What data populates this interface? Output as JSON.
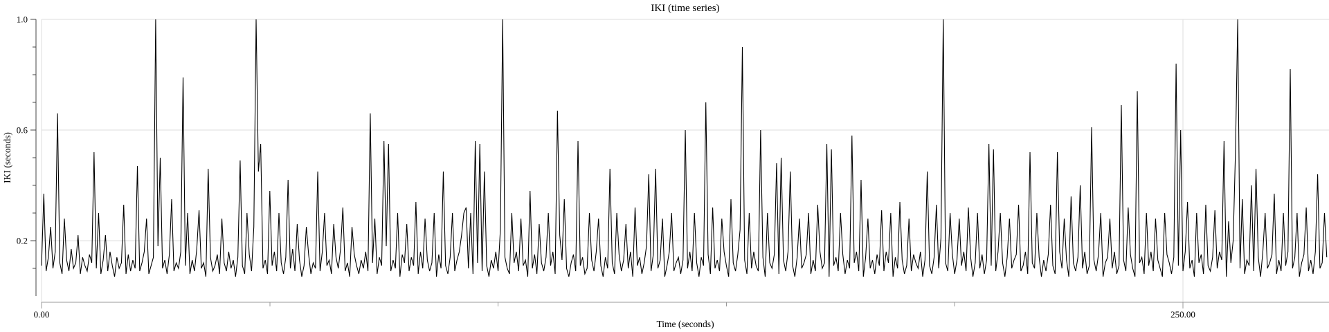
{
  "title": "IKI (time series)",
  "colors": {
    "line": "#000000",
    "grid": "#dddddd",
    "y_axis": "#444444",
    "x_axis": "#999999",
    "text": "#000000",
    "background": "#ffffff"
  },
  "chart_data": {
    "type": "line",
    "title": "IKI (time series)",
    "xlabel": "Time (seconds)",
    "ylabel": "IKI (seconds)",
    "legend": "none",
    "grid": "horizontal-majors-and-x-major-verticals",
    "xlim": [
      0,
      282
    ],
    "ylim": [
      0,
      1.0
    ],
    "x_ticks_major": [
      {
        "value": 0,
        "label": "0.00"
      },
      {
        "value": 250,
        "label": "250.00"
      }
    ],
    "x_ticks_minor": [
      50,
      100,
      150,
      200
    ],
    "y_ticks_major": [
      {
        "value": 1.0,
        "label": "1.0"
      },
      {
        "value": 0.6,
        "label": "0.6"
      },
      {
        "value": 0.2,
        "label": "0.2"
      }
    ],
    "y_ticks_minor": [
      0.1,
      0.3,
      0.4,
      0.5,
      0.7,
      0.8,
      0.9
    ],
    "x_start": 0,
    "x_step": 0.5,
    "values": [
      0.11,
      0.37,
      0.09,
      0.14,
      0.25,
      0.1,
      0.16,
      0.66,
      0.12,
      0.08,
      0.28,
      0.13,
      0.09,
      0.17,
      0.1,
      0.12,
      0.22,
      0.08,
      0.14,
      0.11,
      0.09,
      0.15,
      0.12,
      0.52,
      0.1,
      0.3,
      0.08,
      0.13,
      0.22,
      0.09,
      0.16,
      0.11,
      0.07,
      0.14,
      0.1,
      0.12,
      0.33,
      0.08,
      0.15,
      0.09,
      0.13,
      0.1,
      0.47,
      0.09,
      0.12,
      0.16,
      0.28,
      0.08,
      0.11,
      0.14,
      1.0,
      0.18,
      0.5,
      0.1,
      0.13,
      0.08,
      0.15,
      0.35,
      0.09,
      0.12,
      0.1,
      0.16,
      0.79,
      0.11,
      0.3,
      0.08,
      0.13,
      0.09,
      0.17,
      0.31,
      0.1,
      0.12,
      0.07,
      0.46,
      0.14,
      0.09,
      0.11,
      0.15,
      0.08,
      0.28,
      0.12,
      0.09,
      0.16,
      0.1,
      0.13,
      0.07,
      0.14,
      0.49,
      0.11,
      0.08,
      0.3,
      0.15,
      0.09,
      0.25,
      1.0,
      0.45,
      0.55,
      0.1,
      0.13,
      0.08,
      0.38,
      0.11,
      0.16,
      0.09,
      0.3,
      0.12,
      0.08,
      0.14,
      0.42,
      0.1,
      0.17,
      0.09,
      0.26,
      0.13,
      0.07,
      0.11,
      0.25,
      0.15,
      0.08,
      0.12,
      0.1,
      0.45,
      0.09,
      0.16,
      0.3,
      0.11,
      0.13,
      0.08,
      0.26,
      0.14,
      0.1,
      0.17,
      0.32,
      0.09,
      0.12,
      0.07,
      0.25,
      0.15,
      0.11,
      0.08,
      0.13,
      0.1,
      0.16,
      0.09,
      0.66,
      0.12,
      0.28,
      0.08,
      0.14,
      0.11,
      0.56,
      0.18,
      0.55,
      0.09,
      0.13,
      0.1,
      0.3,
      0.07,
      0.15,
      0.12,
      0.26,
      0.09,
      0.14,
      0.11,
      0.34,
      0.08,
      0.16,
      0.1,
      0.28,
      0.13,
      0.09,
      0.12,
      0.3,
      0.07,
      0.15,
      0.1,
      0.45,
      0.11,
      0.08,
      0.14,
      0.3,
      0.09,
      0.13,
      0.16,
      0.22,
      0.3,
      0.32,
      0.1,
      0.3,
      0.08,
      0.56,
      0.12,
      0.55,
      0.09,
      0.45,
      0.11,
      0.07,
      0.13,
      0.1,
      0.16,
      0.09,
      0.24,
      1.0,
      0.14,
      0.1,
      0.08,
      0.3,
      0.12,
      0.16,
      0.09,
      0.28,
      0.11,
      0.13,
      0.07,
      0.38,
      0.1,
      0.15,
      0.08,
      0.26,
      0.12,
      0.09,
      0.14,
      0.3,
      0.11,
      0.16,
      0.08,
      0.67,
      0.22,
      0.13,
      0.35,
      0.1,
      0.07,
      0.12,
      0.15,
      0.09,
      0.56,
      0.11,
      0.14,
      0.08,
      0.1,
      0.3,
      0.13,
      0.09,
      0.16,
      0.28,
      0.11,
      0.07,
      0.14,
      0.1,
      0.46,
      0.12,
      0.08,
      0.3,
      0.15,
      0.09,
      0.13,
      0.26,
      0.1,
      0.16,
      0.07,
      0.32,
      0.11,
      0.14,
      0.08,
      0.12,
      0.18,
      0.44,
      0.09,
      0.15,
      0.46,
      0.1,
      0.13,
      0.28,
      0.07,
      0.11,
      0.16,
      0.3,
      0.09,
      0.12,
      0.14,
      0.08,
      0.13,
      0.6,
      0.1,
      0.16,
      0.09,
      0.3,
      0.12,
      0.07,
      0.14,
      0.11,
      0.7,
      0.15,
      0.08,
      0.32,
      0.1,
      0.13,
      0.09,
      0.28,
      0.16,
      0.11,
      0.07,
      0.35,
      0.12,
      0.09,
      0.15,
      0.24,
      0.9,
      0.13,
      0.08,
      0.3,
      0.1,
      0.16,
      0.11,
      0.09,
      0.6,
      0.14,
      0.07,
      0.3,
      0.12,
      0.1,
      0.15,
      0.48,
      0.08,
      0.5,
      0.13,
      0.09,
      0.16,
      0.45,
      0.11,
      0.07,
      0.14,
      0.28,
      0.1,
      0.12,
      0.15,
      0.3,
      0.08,
      0.13,
      0.09,
      0.33,
      0.16,
      0.1,
      0.12,
      0.55,
      0.07,
      0.53,
      0.11,
      0.14,
      0.09,
      0.3,
      0.15,
      0.08,
      0.13,
      0.1,
      0.58,
      0.12,
      0.16,
      0.09,
      0.42,
      0.07,
      0.14,
      0.28,
      0.1,
      0.13,
      0.08,
      0.15,
      0.11,
      0.31,
      0.09,
      0.16,
      0.12,
      0.3,
      0.07,
      0.14,
      0.1,
      0.34,
      0.13,
      0.08,
      0.11,
      0.28,
      0.09,
      0.15,
      0.12,
      0.1,
      0.16,
      0.07,
      0.13,
      0.45,
      0.11,
      0.08,
      0.14,
      0.33,
      0.1,
      0.21,
      1.0,
      0.12,
      0.09,
      0.3,
      0.15,
      0.08,
      0.13,
      0.28,
      0.11,
      0.16,
      0.09,
      0.32,
      0.14,
      0.07,
      0.12,
      0.3,
      0.1,
      0.15,
      0.08,
      0.13,
      0.55,
      0.11,
      0.53,
      0.09,
      0.16,
      0.3,
      0.12,
      0.07,
      0.14,
      0.28,
      0.1,
      0.13,
      0.15,
      0.33,
      0.09,
      0.11,
      0.16,
      0.08,
      0.52,
      0.12,
      0.1,
      0.3,
      0.14,
      0.07,
      0.13,
      0.09,
      0.15,
      0.33,
      0.11,
      0.08,
      0.52,
      0.16,
      0.1,
      0.28,
      0.13,
      0.07,
      0.36,
      0.12,
      0.09,
      0.14,
      0.4,
      0.1,
      0.16,
      0.08,
      0.11,
      0.61,
      0.13,
      0.09,
      0.15,
      0.3,
      0.07,
      0.12,
      0.14,
      0.28,
      0.1,
      0.16,
      0.08,
      0.11,
      0.69,
      0.13,
      0.09,
      0.32,
      0.15,
      0.1,
      0.07,
      0.74,
      0.12,
      0.14,
      0.08,
      0.3,
      0.11,
      0.16,
      0.09,
      0.28,
      0.13,
      0.1,
      0.07,
      0.3,
      0.15,
      0.12,
      0.08,
      0.14,
      0.84,
      0.11,
      0.6,
      0.09,
      0.16,
      0.34,
      0.1,
      0.13,
      0.07,
      0.3,
      0.12,
      0.15,
      0.08,
      0.33,
      0.11,
      0.09,
      0.14,
      0.31,
      0.1,
      0.16,
      0.13,
      0.56,
      0.07,
      0.27,
      0.12,
      0.2,
      0.52,
      1.0,
      0.1,
      0.35,
      0.08,
      0.13,
      0.11,
      0.4,
      0.09,
      0.46,
      0.14,
      0.07,
      0.16,
      0.3,
      0.1,
      0.12,
      0.15,
      0.37,
      0.08,
      0.13,
      0.09,
      0.3,
      0.11,
      0.16,
      0.82,
      0.1,
      0.14,
      0.3,
      0.07,
      0.12,
      0.15,
      0.32,
      0.09,
      0.13,
      0.08,
      0.16,
      0.44,
      0.1,
      0.12,
      0.3,
      0.14
    ]
  }
}
